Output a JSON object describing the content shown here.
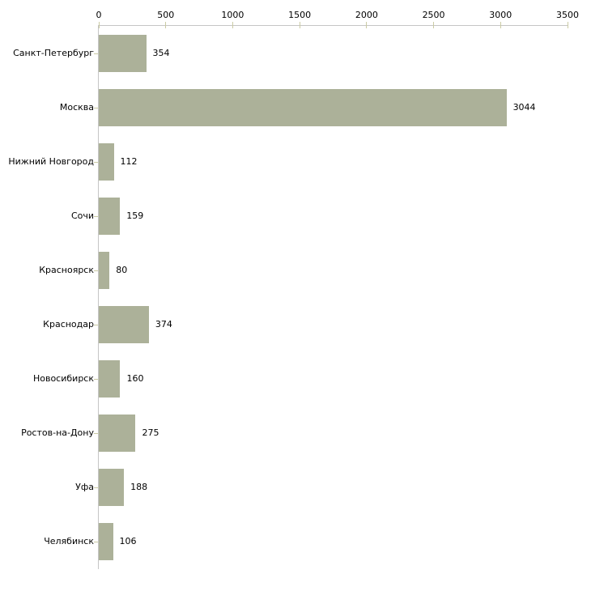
{
  "chart_data": {
    "type": "bar",
    "orientation": "horizontal",
    "title": "",
    "xlabel": "",
    "ylabel": "",
    "grid": false,
    "legend": "none",
    "categories": [
      "Санкт-Петербург",
      "Москва",
      "Нижний Новгород",
      "Сочи",
      "Красноярск",
      "Краснодар",
      "Новосибирск",
      "Ростов-на-Дону",
      "Уфа",
      "Челябинск"
    ],
    "values": [
      354,
      3044,
      112,
      159,
      80,
      374,
      160,
      275,
      188,
      106
    ],
    "value_labels": [
      "354",
      "3044",
      "112",
      "159",
      "80",
      "374",
      "160",
      "275",
      "188",
      "106"
    ],
    "xticks": [
      0,
      500,
      1000,
      1500,
      2000,
      2500,
      3000,
      3500
    ],
    "xtick_labels": [
      "0",
      "500",
      "1000",
      "1500",
      "2000",
      "2500",
      "3000",
      "3500"
    ],
    "xlim": [
      0,
      3500
    ],
    "axis_position": "top",
    "colors": {
      "bar": "#acb199",
      "axis_line": "#c6c6c6",
      "tick": "#cbcba4",
      "text": "#000000",
      "background": "#ffffff"
    }
  }
}
